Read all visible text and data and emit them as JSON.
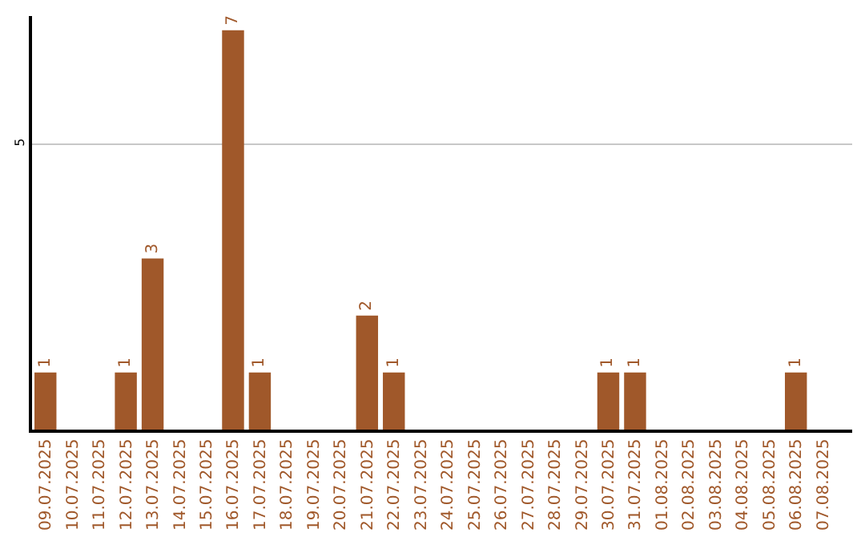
{
  "chart_data": {
    "type": "bar",
    "categories": [
      "09.07.2025",
      "10.07.2025",
      "11.07.2025",
      "12.07.2025",
      "13.07.2025",
      "14.07.2025",
      "15.07.2025",
      "16.07.2025",
      "17.07.2025",
      "18.07.2025",
      "19.07.2025",
      "20.07.2025",
      "21.07.2025",
      "22.07.2025",
      "23.07.2025",
      "24.07.2025",
      "25.07.2025",
      "26.07.2025",
      "27.07.2025",
      "28.07.2025",
      "29.07.2025",
      "30.07.2025",
      "31.07.2025",
      "01.08.2025",
      "02.08.2025",
      "03.08.2025",
      "04.08.2025",
      "05.08.2025",
      "06.08.2025",
      "07.08.2025"
    ],
    "values": [
      1,
      0,
      0,
      1,
      3,
      0,
      0,
      7,
      1,
      0,
      0,
      0,
      2,
      1,
      0,
      0,
      0,
      0,
      0,
      0,
      0,
      1,
      1,
      0,
      0,
      0,
      0,
      0,
      1,
      0
    ],
    "value_labels": [
      "1",
      null,
      null,
      "1",
      "3",
      null,
      null,
      "7",
      "1",
      null,
      null,
      null,
      "2",
      "1",
      null,
      null,
      null,
      null,
      null,
      null,
      null,
      "1",
      "1",
      null,
      null,
      null,
      null,
      null,
      "1",
      null
    ],
    "color": "#a0582a",
    "ylim": [
      0,
      7.25
    ],
    "yticks": [
      5
    ],
    "grid": "y"
  }
}
